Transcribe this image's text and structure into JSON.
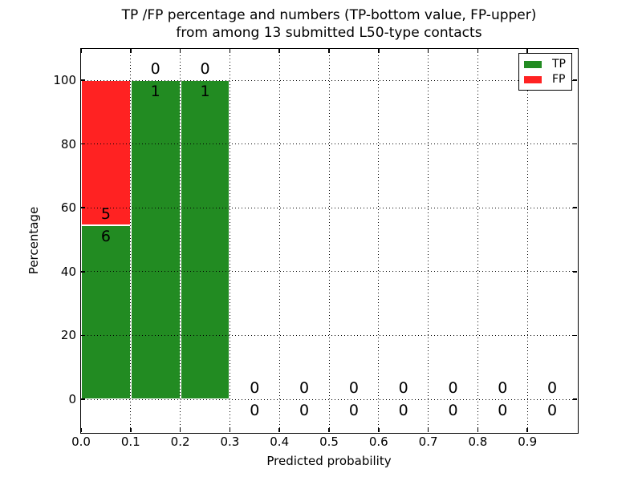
{
  "figure": {
    "title_line1": "TP /FP percentage and numbers (TP-bottom value, FP-upper)",
    "title_line2": "from among 13 submitted L50-type contacts",
    "background_color": "#ffffff"
  },
  "colors": {
    "tp": "#228b22",
    "fp": "#ff2222",
    "grid": "#000000",
    "text": "#000000"
  },
  "chart_data": {
    "type": "bar",
    "subtype": "stacked-percentage-histogram",
    "title": "TP /FP percentage and numbers (TP-bottom value, FP-upper) from among 13 submitted L50-type contacts",
    "xlabel": "Predicted probability",
    "ylabel": "Percentage",
    "xlim": [
      0.0,
      1.0
    ],
    "ylim": [
      -10.5,
      110
    ],
    "grid": true,
    "grid_style": "dotted",
    "legend_position": "upper-right",
    "legend": {
      "items": [
        {
          "label": "TP",
          "color": "#228b22"
        },
        {
          "label": "FP",
          "color": "#ff2222"
        }
      ]
    },
    "xticks": [
      {
        "value": 0.0,
        "label": "0.0"
      },
      {
        "value": 0.1,
        "label": "0.1"
      },
      {
        "value": 0.2,
        "label": "0.2"
      },
      {
        "value": 0.3,
        "label": "0.3"
      },
      {
        "value": 0.4,
        "label": "0.4"
      },
      {
        "value": 0.5,
        "label": "0.5"
      },
      {
        "value": 0.6,
        "label": "0.6"
      },
      {
        "value": 0.7,
        "label": "0.7"
      },
      {
        "value": 0.8,
        "label": "0.8"
      },
      {
        "value": 0.9,
        "label": "0.9"
      }
    ],
    "yticks": [
      {
        "value": 0,
        "label": "0"
      },
      {
        "value": 20,
        "label": "20"
      },
      {
        "value": 40,
        "label": "40"
      },
      {
        "value": 60,
        "label": "60"
      },
      {
        "value": 80,
        "label": "80"
      },
      {
        "value": 100,
        "label": "100"
      }
    ],
    "bins": [
      {
        "x0": 0.0,
        "x1": 0.1,
        "tp_count": 6,
        "fp_count": 5,
        "tp_pct": 54.545,
        "fp_pct": 45.455
      },
      {
        "x0": 0.1,
        "x1": 0.2,
        "tp_count": 1,
        "fp_count": 0,
        "tp_pct": 100,
        "fp_pct": 0
      },
      {
        "x0": 0.2,
        "x1": 0.3,
        "tp_count": 1,
        "fp_count": 0,
        "tp_pct": 100,
        "fp_pct": 0
      },
      {
        "x0": 0.3,
        "x1": 0.4,
        "tp_count": 0,
        "fp_count": 0,
        "tp_pct": 0,
        "fp_pct": 0
      },
      {
        "x0": 0.4,
        "x1": 0.5,
        "tp_count": 0,
        "fp_count": 0,
        "tp_pct": 0,
        "fp_pct": 0
      },
      {
        "x0": 0.5,
        "x1": 0.6,
        "tp_count": 0,
        "fp_count": 0,
        "tp_pct": 0,
        "fp_pct": 0
      },
      {
        "x0": 0.6,
        "x1": 0.7,
        "tp_count": 0,
        "fp_count": 0,
        "tp_pct": 0,
        "fp_pct": 0
      },
      {
        "x0": 0.7,
        "x1": 0.8,
        "tp_count": 0,
        "fp_count": 0,
        "tp_pct": 0,
        "fp_pct": 0
      },
      {
        "x0": 0.8,
        "x1": 0.9,
        "tp_count": 0,
        "fp_count": 0,
        "tp_pct": 0,
        "fp_pct": 0
      },
      {
        "x0": 0.9,
        "x1": 1.0,
        "tp_count": 0,
        "fp_count": 0,
        "tp_pct": 0,
        "fp_pct": 0
      }
    ]
  }
}
